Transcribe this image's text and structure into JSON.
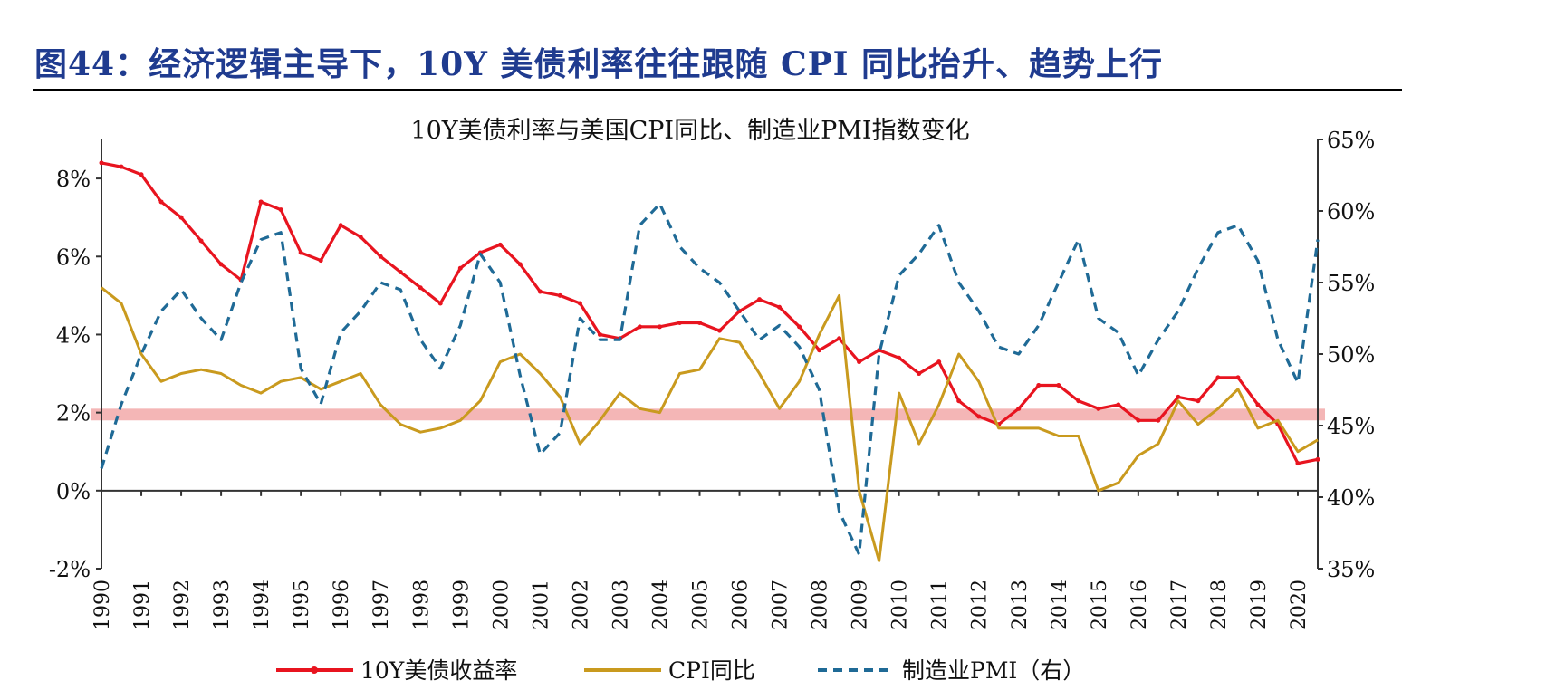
{
  "figure": {
    "title": "图44：经济逻辑主导下，10Y 美债利率往往跟随 CPI 同比抬升、趋势上行"
  },
  "chart_data": {
    "type": "line",
    "title": "10Y美债利率与美国CPI同比、制造业PMI指数变化",
    "x": [
      1990,
      1990.5,
      1991,
      1991.5,
      1992,
      1992.5,
      1993,
      1993.5,
      1994,
      1994.5,
      1995,
      1995.5,
      1996,
      1996.5,
      1997,
      1997.5,
      1998,
      1998.5,
      1999,
      1999.5,
      2000,
      2000.5,
      2001,
      2001.5,
      2002,
      2002.5,
      2003,
      2003.5,
      2004,
      2004.5,
      2005,
      2005.5,
      2006,
      2006.5,
      2007,
      2007.5,
      2008,
      2008.5,
      2009,
      2009.5,
      2010,
      2010.5,
      2011,
      2011.5,
      2012,
      2012.5,
      2013,
      2013.5,
      2014,
      2014.5,
      2015,
      2015.5,
      2016,
      2016.5,
      2017,
      2017.5,
      2018,
      2018.5,
      2019,
      2019.5,
      2020,
      2020.5
    ],
    "x_ticks": [
      "1990",
      "1991",
      "1992",
      "1993",
      "1994",
      "1995",
      "1996",
      "1997",
      "1998",
      "1999",
      "2000",
      "2001",
      "2002",
      "2003",
      "2004",
      "2005",
      "2006",
      "2007",
      "2008",
      "2009",
      "2010",
      "2011",
      "2012",
      "2013",
      "2014",
      "2015",
      "2016",
      "2017",
      "2018",
      "2019",
      "2020"
    ],
    "y_left": {
      "ticks": [
        "-2%",
        "0%",
        "2%",
        "4%",
        "6%",
        "8%"
      ],
      "range": [
        -2,
        9
      ]
    },
    "y_right": {
      "ticks": [
        "35%",
        "40%",
        "45%",
        "50%",
        "55%",
        "60%",
        "65%"
      ],
      "range": [
        35,
        65
      ]
    },
    "reference_band": {
      "from": 1.8,
      "to": 2.1,
      "color": "#f4b6b6"
    },
    "series": [
      {
        "name": "10Y美债收益率",
        "axis": "left",
        "color": "#e8141f",
        "style": "solid-marker",
        "values": [
          8.4,
          8.3,
          8.1,
          7.4,
          7.0,
          6.4,
          5.8,
          5.4,
          7.4,
          7.2,
          6.1,
          5.9,
          6.8,
          6.5,
          6.0,
          5.6,
          5.2,
          4.8,
          5.7,
          6.1,
          6.3,
          5.8,
          5.1,
          5.0,
          4.8,
          4.0,
          3.9,
          4.2,
          4.2,
          4.3,
          4.3,
          4.1,
          4.6,
          4.9,
          4.7,
          4.2,
          3.6,
          3.9,
          3.3,
          3.6,
          3.4,
          3.0,
          3.3,
          2.3,
          1.9,
          1.7,
          2.1,
          2.7,
          2.7,
          2.3,
          2.1,
          2.2,
          1.8,
          1.8,
          2.4,
          2.3,
          2.9,
          2.9,
          2.2,
          1.7,
          0.7,
          0.8
        ]
      },
      {
        "name": "CPI同比",
        "axis": "left",
        "color": "#c99a1e",
        "style": "solid",
        "values": [
          5.2,
          4.8,
          3.5,
          2.8,
          3.0,
          3.1,
          3.0,
          2.7,
          2.5,
          2.8,
          2.9,
          2.6,
          2.8,
          3.0,
          2.2,
          1.7,
          1.5,
          1.6,
          1.8,
          2.3,
          3.3,
          3.5,
          3.0,
          2.4,
          1.2,
          1.8,
          2.5,
          2.1,
          2.0,
          3.0,
          3.1,
          3.9,
          3.8,
          3.0,
          2.1,
          2.8,
          4.0,
          5.0,
          0.0,
          -1.8,
          2.5,
          1.2,
          2.2,
          3.5,
          2.8,
          1.6,
          1.6,
          1.6,
          1.4,
          1.4,
          0.0,
          0.2,
          0.9,
          1.2,
          2.3,
          1.7,
          2.1,
          2.6,
          1.6,
          1.8,
          1.0,
          1.3
        ]
      },
      {
        "name": "制造业PMI（右）",
        "axis": "right",
        "color": "#1f6a96",
        "style": "dashed",
        "values": [
          42.0,
          46.5,
          50.0,
          53.0,
          54.5,
          52.5,
          51.0,
          55.0,
          58.0,
          58.5,
          49.0,
          46.5,
          51.5,
          53.0,
          55.0,
          54.5,
          51.0,
          49.0,
          52.0,
          57.0,
          55.0,
          48.5,
          43.0,
          44.5,
          52.5,
          51.0,
          51.0,
          59.0,
          60.5,
          57.5,
          56.0,
          55.0,
          53.0,
          51.0,
          52.0,
          50.5,
          47.5,
          39.0,
          36.0,
          50.0,
          55.5,
          57.0,
          59.0,
          55.0,
          53.0,
          50.5,
          50.0,
          52.0,
          55.0,
          58.0,
          52.5,
          51.5,
          48.5,
          51.0,
          53.0,
          56.0,
          58.5,
          59.0,
          56.5,
          51.0,
          48.0,
          58.0
        ]
      }
    ],
    "legend": {
      "position": "bottom",
      "items": [
        "10Y美债收益率",
        "CPI同比",
        "制造业PMI（右）"
      ]
    }
  }
}
